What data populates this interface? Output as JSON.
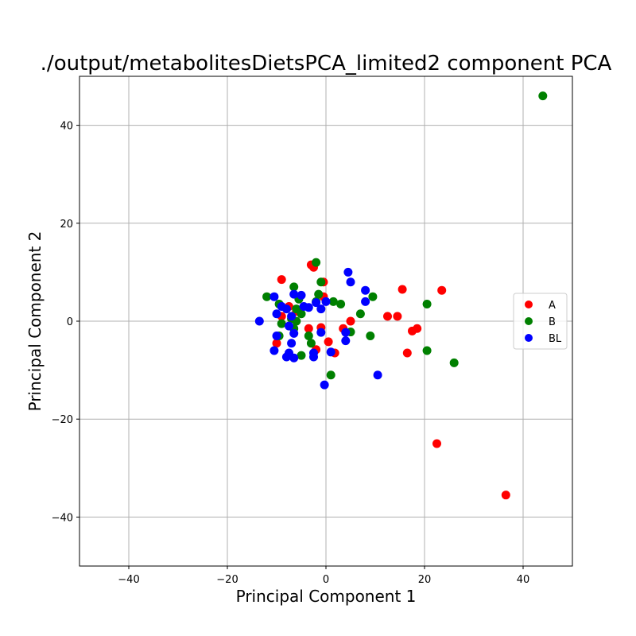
{
  "chart_data": {
    "type": "scatter",
    "title": "./output/metabolitesDietsPCA_limited2 component PCA",
    "xlabel": "Principal Component 1",
    "ylabel": "Principal Component 2",
    "xlim": [
      -50,
      50
    ],
    "ylim": [
      -50,
      50
    ],
    "xticks": [
      -40,
      -20,
      0,
      20,
      40
    ],
    "yticks": [
      -40,
      -20,
      0,
      20,
      40
    ],
    "grid": true,
    "legend_position": "right",
    "series": [
      {
        "name": "A",
        "color": "#ff0000",
        "points": [
          [
            -3.0,
            11.5
          ],
          [
            -2.5,
            11.0
          ],
          [
            -0.5,
            8.0
          ],
          [
            -9.0,
            8.5
          ],
          [
            -0.5,
            5.0
          ],
          [
            -7.5,
            3.0
          ],
          [
            -6.0,
            2.0
          ],
          [
            -9.0,
            1.0
          ],
          [
            5.0,
            0.0
          ],
          [
            12.5,
            1.0
          ],
          [
            14.5,
            1.0
          ],
          [
            15.5,
            6.5
          ],
          [
            23.5,
            6.3
          ],
          [
            18.5,
            -1.5
          ],
          [
            17.5,
            -2.0
          ],
          [
            16.5,
            -6.5
          ],
          [
            -3.5,
            -1.5
          ],
          [
            -1.0,
            -1.3
          ],
          [
            3.5,
            -1.5
          ],
          [
            0.5,
            -4.2
          ],
          [
            1.8,
            -6.5
          ],
          [
            -2.0,
            -5.8
          ],
          [
            -10.0,
            -4.5
          ],
          [
            22.5,
            -25.0
          ],
          [
            36.5,
            -35.5
          ]
        ]
      },
      {
        "name": "B",
        "color": "#008000",
        "points": [
          [
            44.0,
            46.0
          ],
          [
            -2.0,
            12.0
          ],
          [
            -1.0,
            8.0
          ],
          [
            -6.5,
            7.0
          ],
          [
            -1.5,
            5.5
          ],
          [
            -5.5,
            4.5
          ],
          [
            -12.0,
            5.0
          ],
          [
            9.5,
            5.0
          ],
          [
            1.5,
            4.0
          ],
          [
            3.0,
            3.5
          ],
          [
            -9.5,
            3.5
          ],
          [
            -6.0,
            2.5
          ],
          [
            -5.0,
            1.5
          ],
          [
            -7.0,
            0.5
          ],
          [
            7.0,
            1.5
          ],
          [
            20.5,
            3.5
          ],
          [
            -9.0,
            -0.5
          ],
          [
            -6.5,
            -1.5
          ],
          [
            -3.5,
            -3.0
          ],
          [
            5.0,
            -2.2
          ],
          [
            9.0,
            -3.0
          ],
          [
            -3.0,
            -4.5
          ],
          [
            -5.0,
            -7.0
          ],
          [
            1.0,
            -11.0
          ],
          [
            20.5,
            -6.0
          ],
          [
            26.0,
            -8.5
          ],
          [
            -9.5,
            -3.0
          ],
          [
            -2.0,
            4.0
          ],
          [
            -6.0,
            0.0
          ]
        ]
      },
      {
        "name": "BL",
        "color": "#0000ff",
        "points": [
          [
            4.5,
            10.0
          ],
          [
            5.0,
            8.0
          ],
          [
            8.0,
            6.3
          ],
          [
            8.0,
            4.0
          ],
          [
            -10.5,
            5.0
          ],
          [
            -6.5,
            5.5
          ],
          [
            -5.0,
            5.3
          ],
          [
            -9.0,
            3.0
          ],
          [
            -8.0,
            2.5
          ],
          [
            -4.5,
            3.0
          ],
          [
            -3.5,
            2.8
          ],
          [
            -1.0,
            2.5
          ],
          [
            -2.0,
            3.8
          ],
          [
            0.0,
            4.0
          ],
          [
            -10.0,
            1.5
          ],
          [
            -7.0,
            1.0
          ],
          [
            -13.5,
            0.0
          ],
          [
            -7.5,
            -1.0
          ],
          [
            -1.0,
            -2.3
          ],
          [
            4.0,
            -2.3
          ],
          [
            -6.5,
            -2.5
          ],
          [
            -10.0,
            -3.0
          ],
          [
            -7.0,
            -4.5
          ],
          [
            4.0,
            -4.0
          ],
          [
            -2.5,
            -6.5
          ],
          [
            1.0,
            -6.3
          ],
          [
            -10.5,
            -6.0
          ],
          [
            -7.5,
            -6.5
          ],
          [
            -8.0,
            -7.3
          ],
          [
            -6.5,
            -7.5
          ],
          [
            -2.5,
            -7.3
          ],
          [
            -0.3,
            -13.0
          ],
          [
            10.5,
            -11.0
          ]
        ]
      }
    ]
  }
}
